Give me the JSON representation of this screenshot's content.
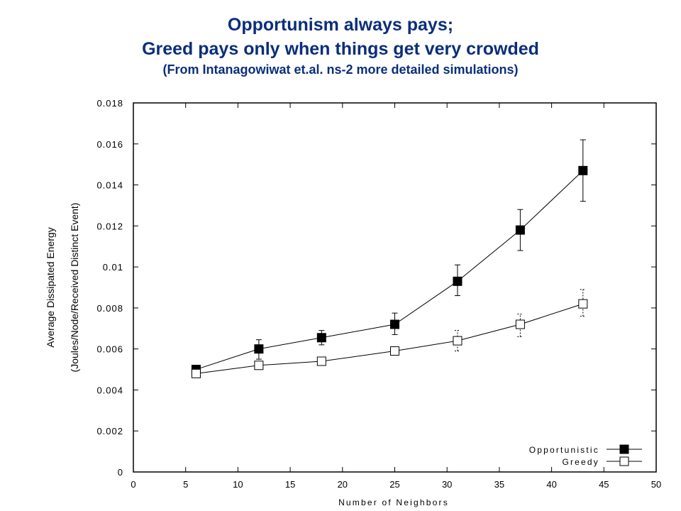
{
  "title": {
    "line1": "Opportunism always pays;",
    "line2": "Greed pays only when things get very crowded",
    "line3": "(From Intanagowiwat et.al. ns-2 more detailed simulations)"
  },
  "colors": {
    "title": "#0b2e7a",
    "axis": "#000000"
  },
  "chart_data": {
    "type": "line",
    "title": "Opportunism always pays; Greed pays only when things get very crowded",
    "subtitle": "(From Intanagowiwat et.al. ns-2 more detailed simulations)",
    "xlabel": "Number of Neighbors",
    "ylabel_line1": "Average Dissipated Energy",
    "ylabel_line2": "(Joules/Node/Received Distinct Event)",
    "xlim": [
      0,
      50
    ],
    "ylim": [
      0,
      0.018
    ],
    "xticks": [
      "0",
      "5",
      "10",
      "15",
      "20",
      "25",
      "30",
      "35",
      "40",
      "45",
      "50"
    ],
    "yticks": [
      "0",
      "0.002",
      "0.004",
      "0.006",
      "0.008",
      "0.01",
      "0.012",
      "0.014",
      "0.016",
      "0.018"
    ],
    "grid": false,
    "legend_position": "bottom-right",
    "series": [
      {
        "name": "Opportunistic",
        "marker": "filled-square",
        "x": [
          6,
          12,
          18,
          25,
          31,
          37,
          43
        ],
        "y": [
          0.005,
          0.006,
          0.00655,
          0.0072,
          0.0093,
          0.0118,
          0.0147
        ],
        "err_low": [
          0.0048,
          0.0055,
          0.0062,
          0.0067,
          0.0086,
          0.0108,
          0.0132
        ],
        "err_high": [
          0.0052,
          0.00645,
          0.0069,
          0.00775,
          0.0101,
          0.0128,
          0.0162
        ]
      },
      {
        "name": "Greedy",
        "marker": "open-square",
        "x": [
          6,
          12,
          18,
          25,
          31,
          37,
          43
        ],
        "y": [
          0.0048,
          0.0052,
          0.0054,
          0.0059,
          0.0064,
          0.0072,
          0.0082
        ],
        "err_low": [
          0.0047,
          0.005,
          0.00525,
          0.0057,
          0.0059,
          0.0066,
          0.0076
        ],
        "err_high": [
          0.0049,
          0.0054,
          0.0056,
          0.0061,
          0.0069,
          0.0077,
          0.0089
        ]
      }
    ]
  }
}
